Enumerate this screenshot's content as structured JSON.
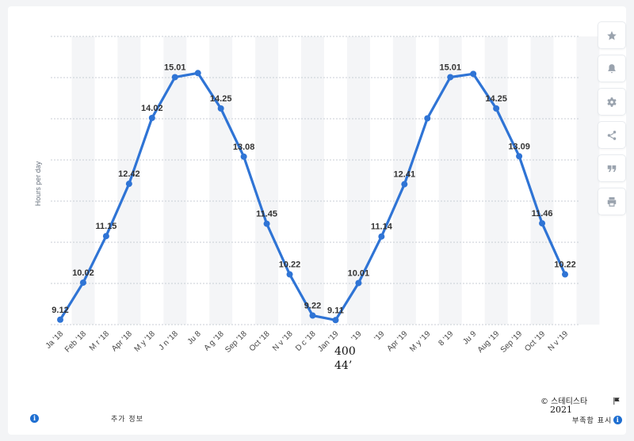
{
  "chart_data": {
    "type": "line",
    "ylabel": "Hours per day",
    "categories": [
      "Jan '18",
      "Feb '18",
      "Mar '18",
      "Apr '18",
      "May '18",
      "Jun '18",
      "Jul '18",
      "Aug '18",
      "Sep '18",
      "Oct '18",
      "Nov '18",
      "Dec '18",
      "Jan '19",
      "Feb '19",
      "Mar '19",
      "Apr '19",
      "May '19",
      "Jun '19",
      "Jul '19",
      "Aug '19",
      "Sep '19",
      "Oct '19",
      "Nov '19"
    ],
    "tick_labels": [
      "Ja  '18",
      "Feb '18",
      "M r '18",
      "Apr '18",
      "M  y '18",
      "J n '18",
      "Ju  8",
      "A g '18",
      "Sep '18",
      "Oct '18",
      "N v '18",
      "D c '18",
      "Jan '19",
      "  '19",
      "  '19",
      "Apr '19",
      "M y '19",
      "8 '19",
      "Ju  9",
      "Aug '19",
      "Sep '19",
      "Oct '19",
      "N  v '19"
    ],
    "values": [
      9.12,
      10.02,
      11.15,
      12.42,
      14.02,
      15.01,
      15.11,
      14.25,
      13.08,
      11.45,
      10.22,
      9.22,
      9.11,
      10.01,
      11.14,
      12.41,
      14.01,
      15.01,
      15.09,
      14.25,
      13.09,
      11.46,
      10.22
    ],
    "labels": [
      "9.12",
      "10.02",
      "11.15",
      "12.42",
      "14.02",
      "15.01",
      "",
      "14.25",
      "13.08",
      "11.45",
      "10.22",
      "9.22",
      "9.11",
      "10.01",
      "11.14",
      "12.41",
      "",
      "15.01",
      "",
      "14.25",
      "13.09",
      "11.46",
      "10.22"
    ],
    "ylim": [
      9.0,
      16.0
    ],
    "grid": true,
    "line_color": "#2f74d5"
  },
  "toolbar": {
    "buttons": [
      {
        "name": "favorite-button",
        "icon": "star-icon"
      },
      {
        "name": "notification-button",
        "icon": "bell-icon"
      },
      {
        "name": "settings-button",
        "icon": "gear-icon"
      },
      {
        "name": "share-button",
        "icon": "share-icon"
      },
      {
        "name": "cite-button",
        "icon": "quote-icon"
      },
      {
        "name": "print-button",
        "icon": "print-icon"
      }
    ]
  },
  "footer": {
    "more_info": "추가 정보",
    "source": "© 스테티스타",
    "year": "2021",
    "show_source": "부족함 표시"
  },
  "artifacts": {
    "a1": "400",
    "a2": "44’"
  }
}
